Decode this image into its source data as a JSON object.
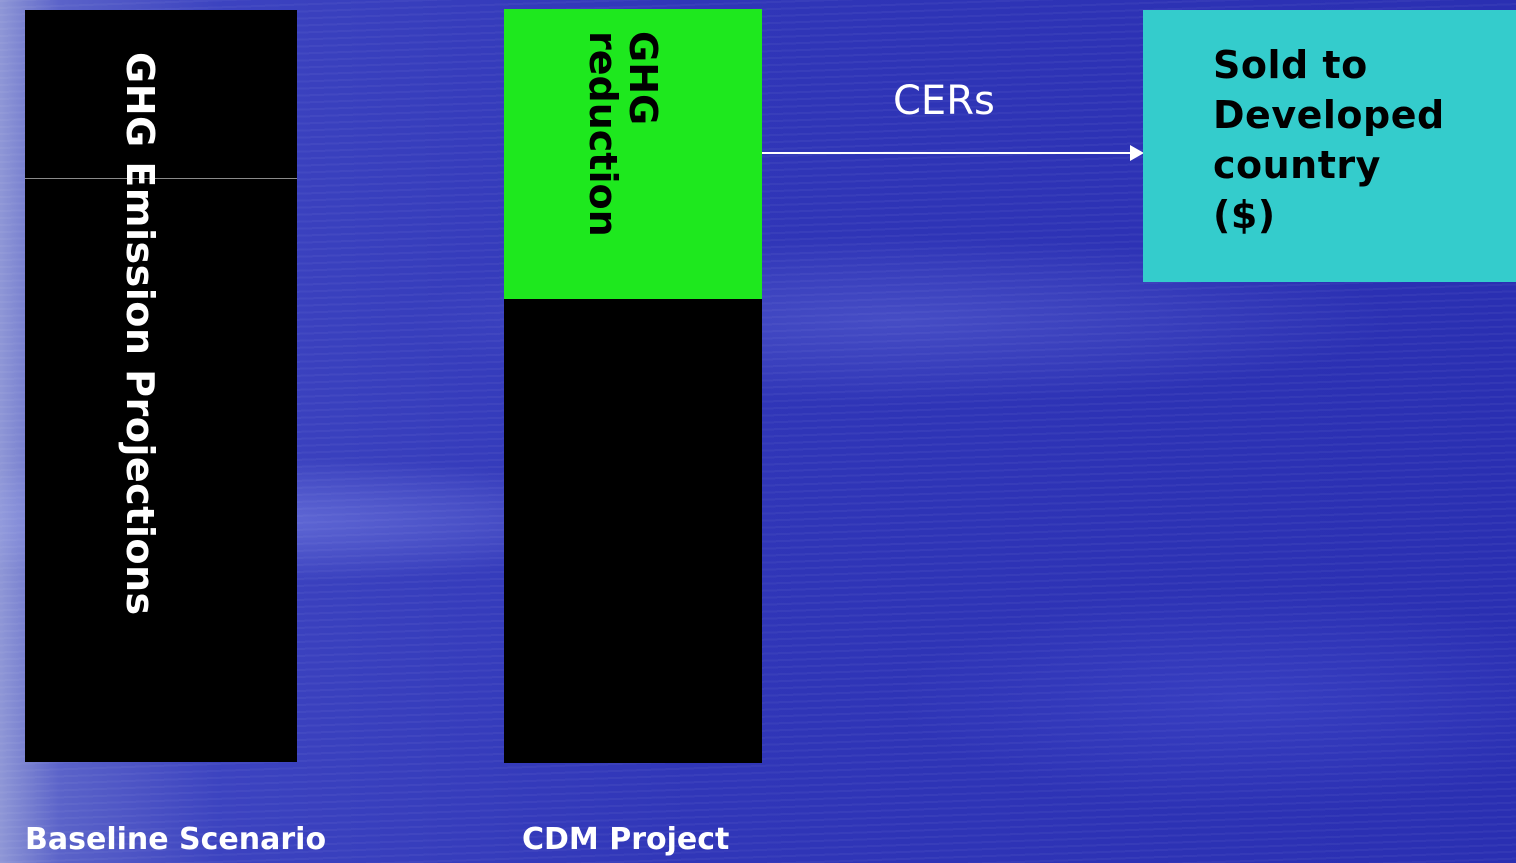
{
  "baseline": {
    "label": "GHG Emission Projections",
    "caption": "Baseline Scenario",
    "color": "#000000"
  },
  "cdm": {
    "label_line1": "GHG",
    "label_line2": "reduction",
    "caption": "CDM Project",
    "reduction_color": "#1ee81e",
    "bar_color": "#000000"
  },
  "flow": {
    "label": "CERs"
  },
  "sold": {
    "lines": [
      "Sold to",
      "Developed",
      "country",
      "($)"
    ],
    "color": "#34cccc"
  }
}
